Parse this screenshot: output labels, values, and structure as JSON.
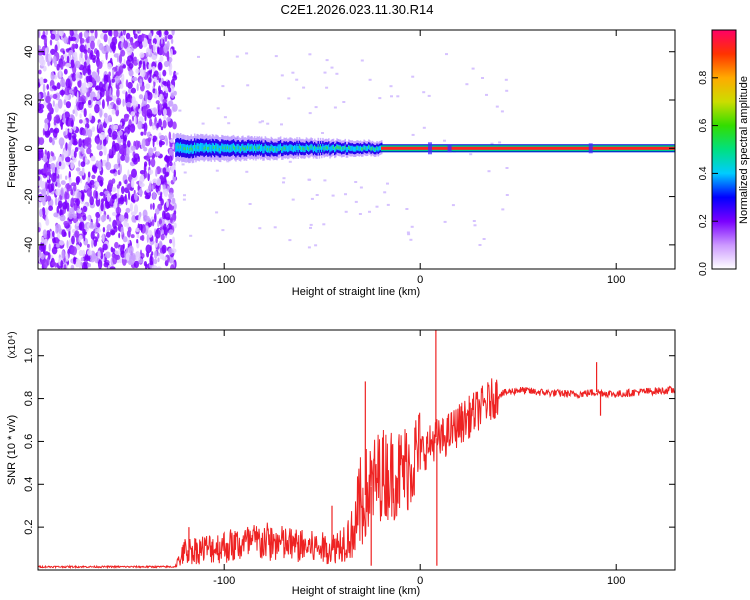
{
  "figure_title": "C2E1.2026.023.11.30.R14",
  "chart_data": [
    {
      "type": "heatmap",
      "name": "spectrogram",
      "xlabel": "Height of straight line (km)",
      "ylabel": "Frequency (Hz)",
      "xlim": [
        -195,
        130
      ],
      "ylim": [
        -50,
        49
      ],
      "x_ticks": [
        -100,
        0,
        100
      ],
      "y_ticks": [
        40,
        20,
        0,
        -20,
        -40
      ],
      "x_tick_labels": [
        "-100",
        "0",
        "100"
      ],
      "y_tick_labels": [
        "40",
        "20",
        "0",
        "-20",
        "-40"
      ],
      "noise_region_x": [
        -195,
        -125
      ],
      "signal_start_x": -125,
      "carrier_line_start_x": -20,
      "carrier_frequency": 0,
      "colorbar": {
        "label": "Normalized spectral amplitude",
        "range": [
          0,
          1
        ],
        "ticks": [
          0.0,
          0.2,
          0.4,
          0.6,
          0.8
        ],
        "tick_labels": [
          "0.0",
          "0.2",
          "0.4",
          "0.6",
          "0.8"
        ],
        "colors": [
          "#ffffff",
          "#cc99ff",
          "#7a00ff",
          "#0000ff",
          "#00ccff",
          "#00e080",
          "#33dd00",
          "#ccdd00",
          "#ffaa00",
          "#ff3300",
          "#ff0066"
        ]
      }
    },
    {
      "type": "line",
      "name": "snr",
      "xlabel": "Height of straight line (km)",
      "ylabel": "SNR (10 * v/v)",
      "yscale_label": "(x10⁴)",
      "xlim": [
        -195,
        130
      ],
      "ylim": [
        0,
        1.12
      ],
      "x_ticks": [
        -100,
        0,
        100
      ],
      "y_ticks": [
        0.2,
        0.4,
        0.6,
        0.8,
        1.0
      ],
      "x_tick_labels": [
        "-100",
        "0",
        "100"
      ],
      "y_tick_labels": [
        "0.2",
        "0.4",
        "0.6",
        "0.8",
        "1.0"
      ],
      "color": "#ee2222",
      "profile": [
        [
          -195,
          0.015
        ],
        [
          -125,
          0.015
        ],
        [
          -120,
          0.08
        ],
        [
          -100,
          0.1
        ],
        [
          -80,
          0.12
        ],
        [
          -60,
          0.1
        ],
        [
          -45,
          0.09
        ],
        [
          -35,
          0.15
        ],
        [
          -28,
          0.35
        ],
        [
          -20,
          0.45
        ],
        [
          -10,
          0.45
        ],
        [
          0,
          0.55
        ],
        [
          5,
          0.58
        ],
        [
          8,
          0.62
        ],
        [
          10,
          0.6
        ],
        [
          20,
          0.68
        ],
        [
          30,
          0.75
        ],
        [
          40,
          0.82
        ],
        [
          50,
          0.84
        ],
        [
          60,
          0.83
        ],
        [
          80,
          0.82
        ],
        [
          90,
          0.83
        ],
        [
          100,
          0.82
        ],
        [
          110,
          0.83
        ],
        [
          130,
          0.84
        ]
      ],
      "spikes": [
        [
          8,
          1.12
        ],
        [
          8.5,
          0.02
        ],
        [
          -28,
          0.88
        ],
        [
          -25,
          0.02
        ],
        [
          -45,
          0.3
        ],
        [
          90,
          0.97
        ],
        [
          92,
          0.72
        ],
        [
          -118,
          0.2
        ]
      ]
    }
  ]
}
